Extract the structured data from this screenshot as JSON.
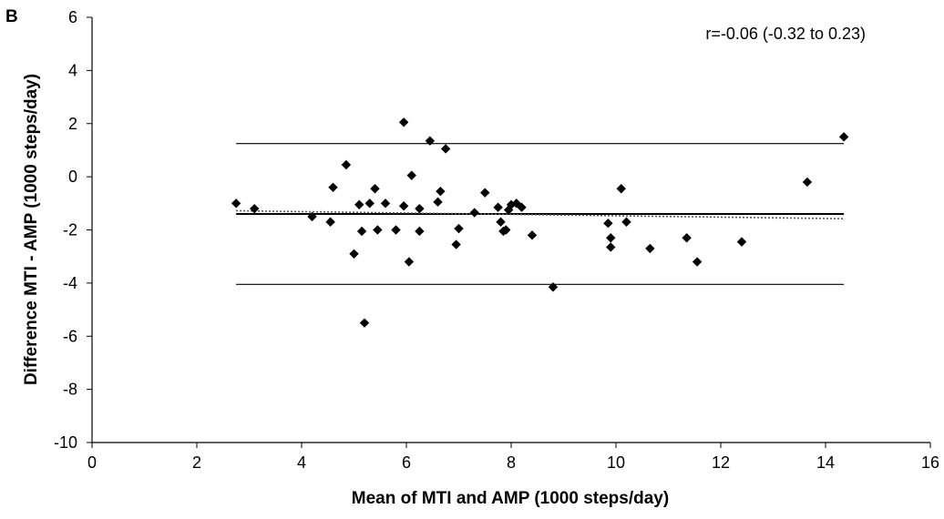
{
  "panel_label": "B",
  "chart_data": {
    "type": "scatter",
    "title": "",
    "xlabel": "Mean of MTI and AMP (1000 steps/day)",
    "ylabel": "Difference MTI - AMP (1000 steps/day)",
    "xlim": [
      0,
      16
    ],
    "ylim": [
      -10,
      6
    ],
    "x_ticks": [
      0,
      2,
      4,
      6,
      8,
      10,
      12,
      14,
      16
    ],
    "y_ticks": [
      -10,
      -8,
      -6,
      -4,
      -2,
      0,
      2,
      4,
      6
    ],
    "grid": false,
    "annotation": "r=-0.06 (-0.32 to 0.23)",
    "points": [
      [
        2.75,
        -1.0
      ],
      [
        3.1,
        -1.2
      ],
      [
        4.2,
        -1.5
      ],
      [
        4.55,
        -1.7
      ],
      [
        4.6,
        -0.4
      ],
      [
        4.85,
        0.45
      ],
      [
        5.0,
        -2.9
      ],
      [
        5.1,
        -1.05
      ],
      [
        5.15,
        -2.05
      ],
      [
        5.2,
        -5.5
      ],
      [
        5.3,
        -1.0
      ],
      [
        5.4,
        -0.45
      ],
      [
        5.45,
        -2.0
      ],
      [
        5.6,
        -1.0
      ],
      [
        5.8,
        -2.0
      ],
      [
        5.95,
        -1.1
      ],
      [
        5.95,
        2.05
      ],
      [
        6.05,
        -3.2
      ],
      [
        6.1,
        0.05
      ],
      [
        6.25,
        -1.2
      ],
      [
        6.25,
        -2.05
      ],
      [
        6.45,
        1.35
      ],
      [
        6.6,
        -0.95
      ],
      [
        6.65,
        -0.55
      ],
      [
        6.75,
        1.05
      ],
      [
        6.95,
        -2.55
      ],
      [
        7.0,
        -1.95
      ],
      [
        7.3,
        -1.35
      ],
      [
        7.5,
        -0.6
      ],
      [
        7.75,
        -1.15
      ],
      [
        7.8,
        -1.7
      ],
      [
        7.85,
        -2.05
      ],
      [
        7.9,
        -2.0
      ],
      [
        7.95,
        -1.25
      ],
      [
        8.0,
        -1.05
      ],
      [
        8.1,
        -1.0
      ],
      [
        8.2,
        -1.15
      ],
      [
        8.4,
        -2.2
      ],
      [
        8.8,
        -4.15
      ],
      [
        9.85,
        -1.75
      ],
      [
        9.9,
        -2.3
      ],
      [
        9.9,
        -2.65
      ],
      [
        10.1,
        -0.45
      ],
      [
        10.2,
        -1.7
      ],
      [
        10.65,
        -2.7
      ],
      [
        11.35,
        -2.3
      ],
      [
        11.55,
        -3.2
      ],
      [
        12.4,
        -2.45
      ],
      [
        13.65,
        -0.2
      ],
      [
        14.35,
        1.5
      ]
    ],
    "reference_lines": [
      {
        "name": "mean difference",
        "y": -1.4,
        "x": [
          2.75,
          14.35
        ],
        "style": "solid",
        "weight": "bold"
      },
      {
        "name": "upper limit of agreement",
        "y": 1.25,
        "x": [
          2.75,
          14.35
        ],
        "style": "solid",
        "weight": "thin"
      },
      {
        "name": "lower limit of agreement",
        "y": -4.05,
        "x": [
          2.75,
          14.35
        ],
        "style": "solid",
        "weight": "thin"
      }
    ],
    "trend_line": {
      "x": [
        2.75,
        14.35
      ],
      "y": [
        -1.28,
        -1.58
      ],
      "style": "dotted"
    },
    "colors": {
      "marker": "#000000",
      "lines": "#000000",
      "trend": "#555555"
    }
  }
}
